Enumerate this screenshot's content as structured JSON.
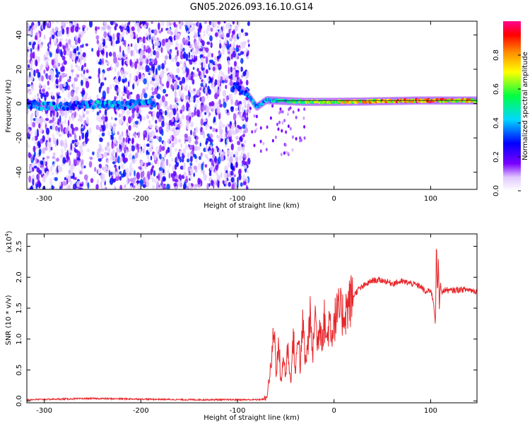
{
  "title": "GN05.2026.093.16.10.G14",
  "chart_data": [
    {
      "type": "heatmap",
      "xlabel": "Height of straight line (km)",
      "ylabel": "Frequency (Hz)",
      "xlim": [
        -318,
        148
      ],
      "ylim": [
        -50,
        48
      ],
      "x_ticks": [
        -300,
        -200,
        -100,
        0,
        100
      ],
      "y_ticks": [
        40,
        20,
        0,
        -20,
        -40
      ],
      "colorbar": {
        "label": "Normalized spectral amplitude",
        "range": [
          0.0,
          1.0
        ],
        "ticks": [
          0.0,
          0.2,
          0.4,
          0.6,
          0.8
        ],
        "colormap": [
          "#ffffff",
          "#7700ff",
          "#0000ff",
          "#00d8ff",
          "#00ff00",
          "#ffff00",
          "#ff8800",
          "#ff0000",
          "#ff0090"
        ]
      },
      "ridge": [
        {
          "x": -318,
          "freq": 0.0,
          "amp": 0.35
        },
        {
          "x": -300,
          "freq": -1.5,
          "amp": 0.45
        },
        {
          "x": -280,
          "freq": -2.0,
          "amp": 0.4
        },
        {
          "x": -260,
          "freq": -0.5,
          "amp": 0.35
        },
        {
          "x": -240,
          "freq": -0.5,
          "amp": 0.45
        },
        {
          "x": -220,
          "freq": -1.0,
          "amp": 0.4
        },
        {
          "x": -200,
          "freq": 0.0,
          "amp": 0.45
        },
        {
          "x": -185,
          "freq": 0.5,
          "amp": 0.4
        },
        {
          "x": -100,
          "freq": 10.0,
          "amp": 0.35
        },
        {
          "x": -90,
          "freq": 6.0,
          "amp": 0.4
        },
        {
          "x": -80,
          "freq": -2.0,
          "amp": 0.4
        },
        {
          "x": -70,
          "freq": 2.0,
          "amp": 0.45
        },
        {
          "x": -50,
          "freq": 1.5,
          "amp": 0.55
        },
        {
          "x": -30,
          "freq": 1.0,
          "amp": 0.65
        },
        {
          "x": 0,
          "freq": 1.0,
          "amp": 0.75
        },
        {
          "x": 30,
          "freq": 1.2,
          "amp": 0.8
        },
        {
          "x": 60,
          "freq": 1.5,
          "amp": 0.85
        },
        {
          "x": 90,
          "freq": 1.8,
          "amp": 0.9
        },
        {
          "x": 120,
          "freq": 1.8,
          "amp": 0.85
        },
        {
          "x": 148,
          "freq": 1.8,
          "amp": 0.8
        }
      ],
      "noise_region_x": [
        -318,
        -88
      ],
      "gap_x": [
        -255,
        -245
      ]
    },
    {
      "type": "line",
      "xlabel": "Height of straight line (km)",
      "ylabel": "SNR (10 * v/v)",
      "y_multiplier": "(x10",
      "y_multiplier_exp": "4",
      "xlim": [
        -318,
        148
      ],
      "ylim": [
        -0.03,
        2.7
      ],
      "x_ticks": [
        -300,
        -200,
        -100,
        0,
        100
      ],
      "y_ticks": [
        0.0,
        0.5,
        1.0,
        1.5,
        2.0,
        2.5
      ],
      "color": "#e8262a",
      "series": [
        {
          "x": [
            -318,
            -250,
            -200,
            -150,
            -100,
            -80,
            -70,
            -65,
            -62,
            -60,
            -57,
            -55,
            -52,
            -50,
            -48,
            -45,
            -42,
            -40,
            -37,
            -35,
            -32,
            -30,
            -27,
            -25,
            -22,
            -20,
            -17,
            -15,
            -12,
            -10,
            -7,
            -5,
            -2,
            0,
            5,
            10,
            15,
            20,
            25,
            30,
            40,
            50,
            60,
            70,
            80,
            90,
            95,
            100,
            103,
            105,
            106,
            107,
            108,
            109,
            110,
            112,
            115,
            120,
            130,
            140,
            148
          ],
          "y": [
            0.02,
            0.04,
            0.03,
            0.02,
            0.02,
            0.02,
            0.03,
            0.6,
            1.2,
            0.5,
            0.9,
            0.3,
            0.7,
            0.4,
            0.9,
            0.3,
            1.05,
            0.4,
            1.2,
            0.5,
            1.3,
            0.6,
            0.9,
            1.4,
            0.7,
            1.5,
            0.9,
            1.3,
            1.05,
            1.3,
            0.95,
            1.35,
            1.1,
            1.3,
            1.45,
            1.4,
            1.55,
            1.7,
            1.8,
            1.85,
            1.95,
            1.95,
            1.9,
            1.93,
            1.9,
            1.85,
            1.75,
            1.8,
            1.6,
            1.25,
            2.6,
            1.7,
            2.3,
            1.5,
            1.9,
            1.75,
            1.8,
            1.78,
            1.8,
            1.8,
            1.77
          ]
        }
      ]
    }
  ]
}
